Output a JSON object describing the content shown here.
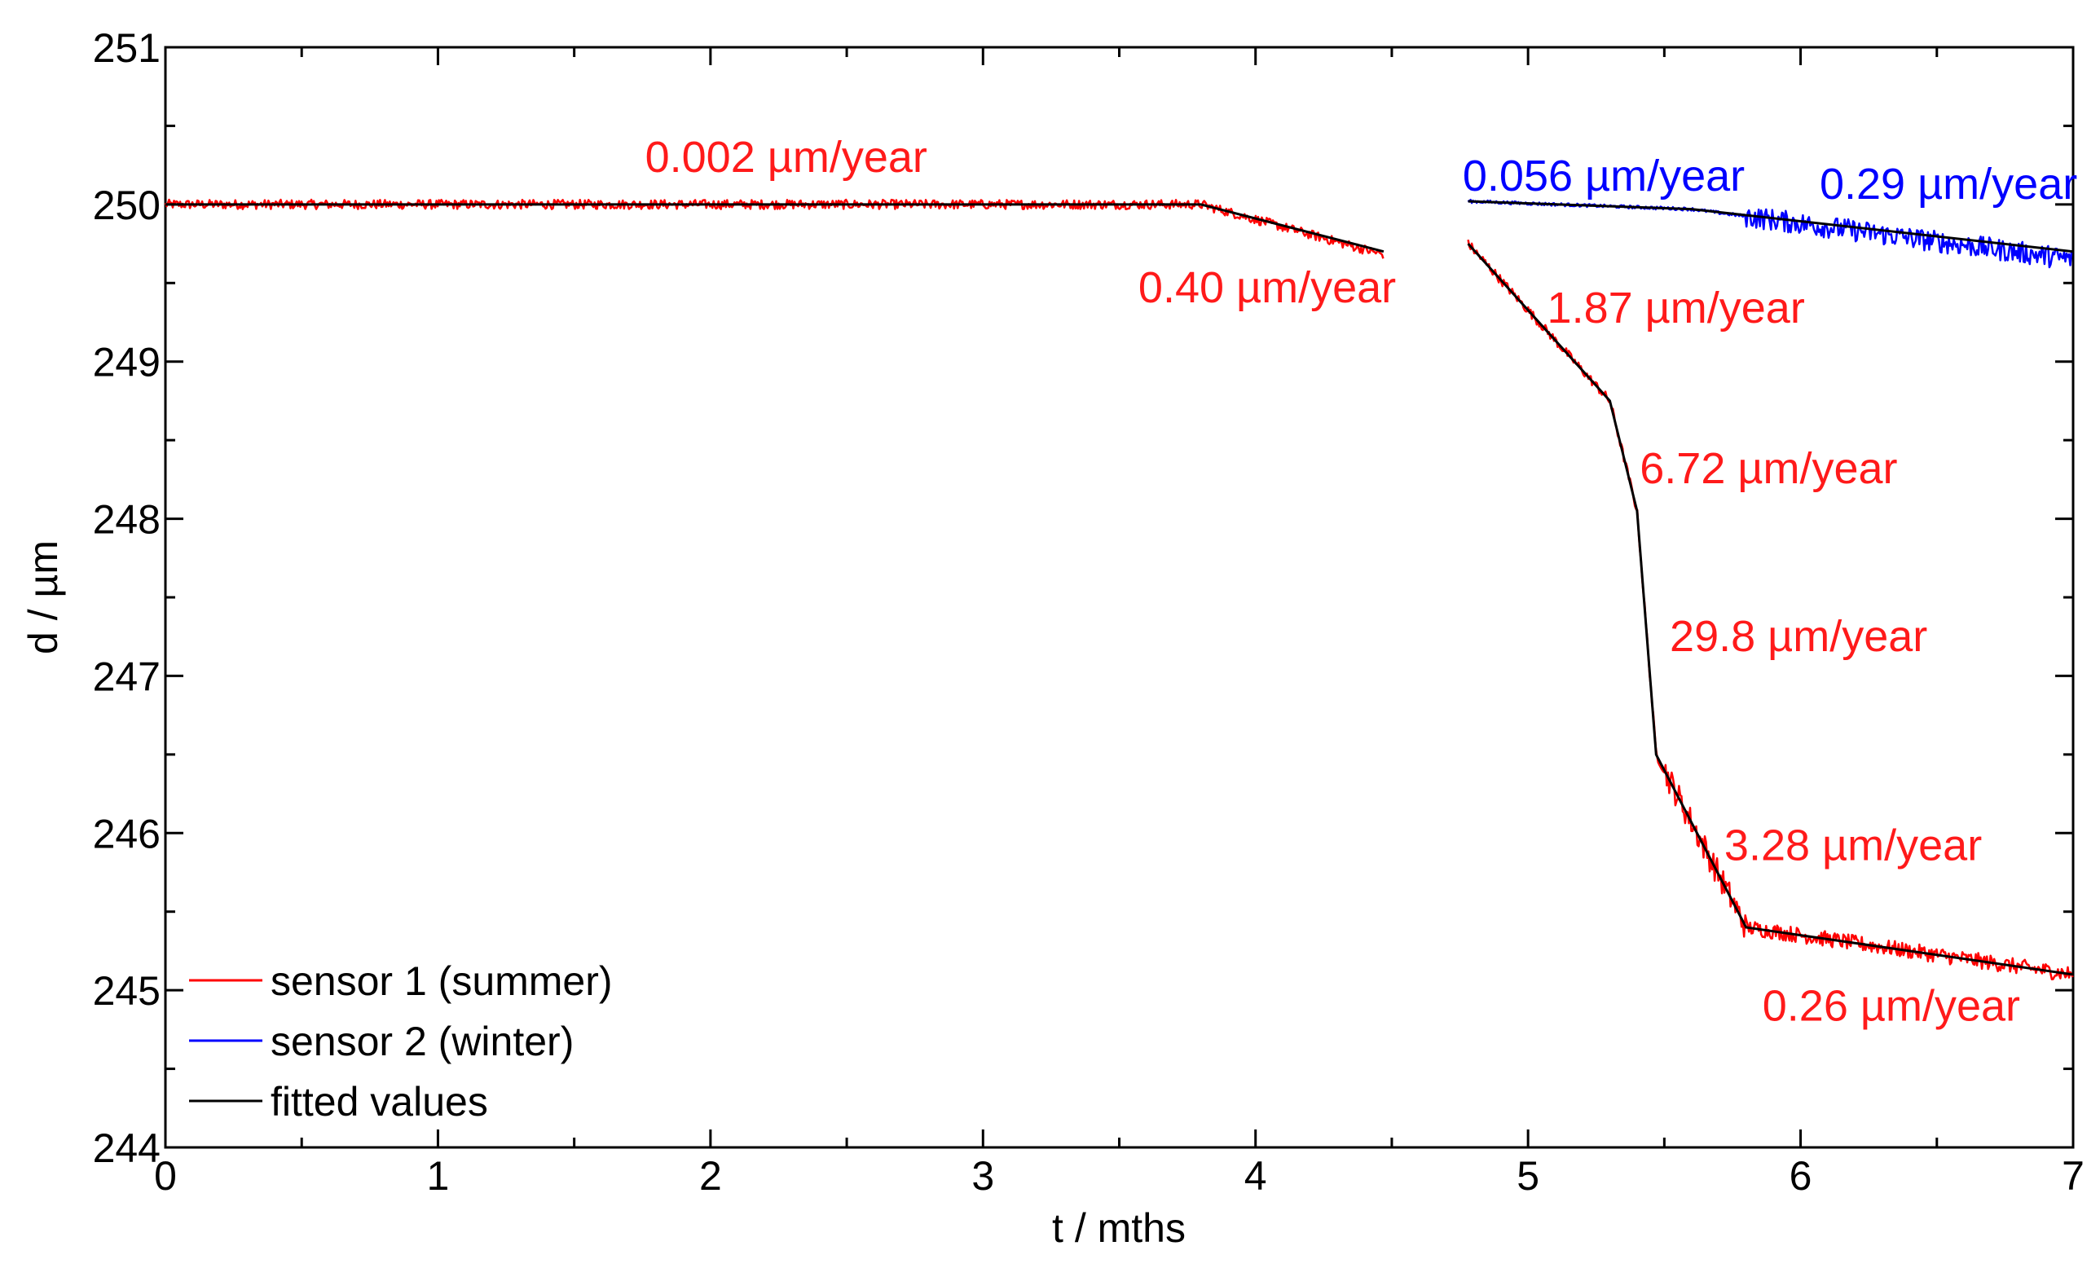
{
  "chart_data": {
    "type": "line",
    "title": "",
    "xlabel": "t / mths",
    "ylabel": "d / µm",
    "xlim": [
      0,
      7
    ],
    "ylim": [
      244,
      251
    ],
    "x_ticks": [
      "0",
      "1",
      "2",
      "3",
      "4",
      "5",
      "6",
      "7"
    ],
    "y_ticks": [
      "244",
      "245",
      "246",
      "247",
      "248",
      "249",
      "250",
      "251"
    ],
    "grid": false,
    "legend_position": "bottom-left",
    "colors": {
      "sensor1": "#ff0000",
      "sensor2": "#0000ff",
      "fit": "#000000",
      "annotation_red": "#ff1a1a",
      "annotation_blue": "#0000ff"
    },
    "series": [
      {
        "name": "sensor 1 (summer)",
        "color": "#ff0000",
        "segments": [
          {
            "x": [
              0,
              3.8,
              4.47
            ],
            "y": [
              250.0,
              250.0,
              249.68
            ]
          },
          {
            "x": [
              4.78,
              5.3,
              5.4,
              5.47,
              5.8,
              7.0
            ],
            "y": [
              249.75,
              248.75,
              248.05,
              246.5,
              245.4,
              245.1
            ]
          }
        ]
      },
      {
        "name": "sensor 2 (winter)",
        "color": "#0000ff",
        "segments": [
          {
            "x": [
              4.78,
              5.6,
              7.0
            ],
            "y": [
              250.02,
              249.97,
              249.65
            ]
          }
        ]
      },
      {
        "name": "fitted values",
        "color": "#000000",
        "segments": [
          {
            "x": [
              0,
              3.8,
              4.47
            ],
            "y": [
              250.0,
              250.0,
              249.7
            ]
          },
          {
            "x": [
              4.78,
              5.3,
              5.4,
              5.47,
              5.8,
              7.0
            ],
            "y": [
              249.75,
              248.75,
              248.05,
              246.5,
              245.4,
              245.1
            ]
          },
          {
            "x": [
              4.78,
              5.6,
              7.0
            ],
            "y": [
              250.02,
              249.97,
              249.7
            ]
          }
        ]
      }
    ],
    "annotations": [
      {
        "text": "0.002 µm/year",
        "color": "red",
        "x": 1.76,
        "y": 250.3
      },
      {
        "text": "0.40 µm/year",
        "color": "red",
        "x": 3.57,
        "y": 249.47
      },
      {
        "text": "0.056 µm/year",
        "color": "blue",
        "x": 4.76,
        "y": 250.18
      },
      {
        "text": "0.29 µm/year",
        "color": "blue",
        "x": 6.07,
        "y": 250.13
      },
      {
        "text": "1.87 µm/year",
        "color": "red",
        "x": 5.07,
        "y": 249.34
      },
      {
        "text": "6.72 µm/year",
        "color": "red",
        "x": 5.41,
        "y": 248.32
      },
      {
        "text": "29.8 µm/year",
        "color": "red",
        "x": 5.52,
        "y": 247.25
      },
      {
        "text": "3.28 µm/year",
        "color": "red",
        "x": 5.72,
        "y": 245.92
      },
      {
        "text": "0.26 µm/year",
        "color": "red",
        "x": 5.86,
        "y": 244.9
      }
    ]
  }
}
